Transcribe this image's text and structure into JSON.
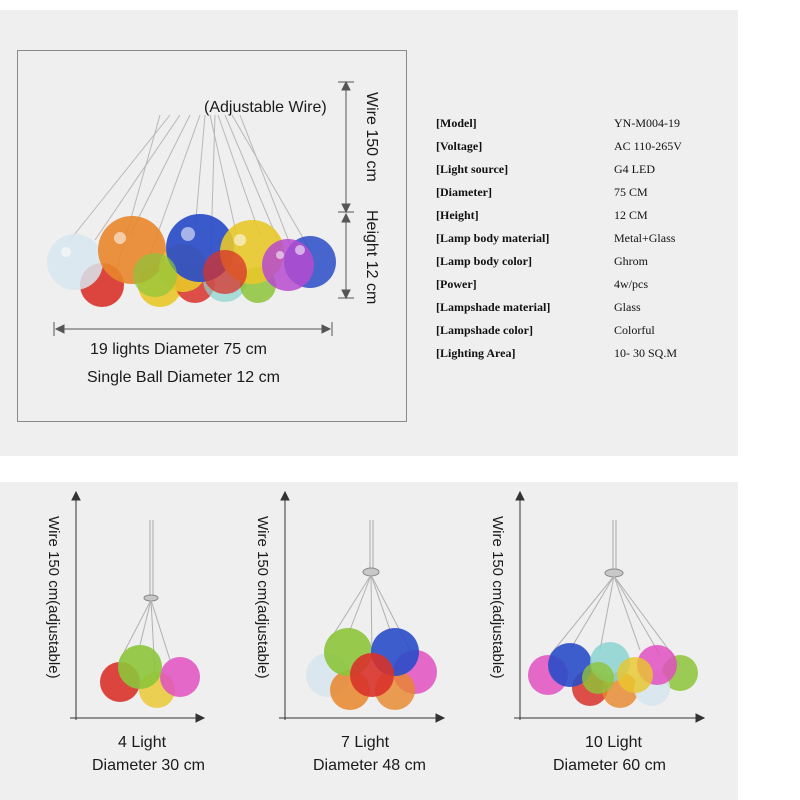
{
  "top": {
    "adjustable_wire": "(Adjustable Wire)",
    "wire_label": "Wire 150 cm",
    "height_label": "Height 12 cm",
    "diameter_label": "19 lights Diameter 75 cm",
    "ball_label": "Single Ball Diameter 12 cm"
  },
  "specs": [
    {
      "label": "[Model]",
      "value": "YN-M004-19"
    },
    {
      "label": "[Voltage]",
      "value": "AC 110-265V"
    },
    {
      "label": "[Light source]",
      "value": "G4 LED"
    },
    {
      "label": "[Diameter]",
      "value": "75 CM"
    },
    {
      "label": "[Height]",
      "value": "12 CM"
    },
    {
      "label": "[Lamp body material]",
      "value": "Metal+Glass"
    },
    {
      "label": "[Lamp body color]",
      "value": "Ghrom"
    },
    {
      "label": "[Power]",
      "value": "4w/pcs"
    },
    {
      "label": "[Lampshade material]",
      "value": "Glass"
    },
    {
      "label": "[Lampshade color]",
      "value": "Colorful"
    },
    {
      "label": "[Lighting Area]",
      "value": "10- 30 SQ.M"
    }
  ],
  "variants": [
    {
      "wire": "Wire 150 cm(adjustable)",
      "lights": "4 Light",
      "diameter": "Diameter 30 cm"
    },
    {
      "wire": "Wire 150 cm(adjustable)",
      "lights": "7 Light",
      "diameter": "Diameter 48 cm"
    },
    {
      "wire": "Wire 150 cm(adjustable)",
      "lights": "10 Light",
      "diameter": "Diameter 60 cm"
    }
  ],
  "colors": {
    "panel": "#efefef",
    "red": "#d8322a",
    "orange": "#e8862a",
    "yellow": "#e8c72a",
    "green": "#8cc43a",
    "blue": "#2a4cc8",
    "purple": "#b64ad0",
    "magenta": "#e050c0",
    "clear": "#d8e6ee",
    "teal": "#8ad4d0"
  }
}
